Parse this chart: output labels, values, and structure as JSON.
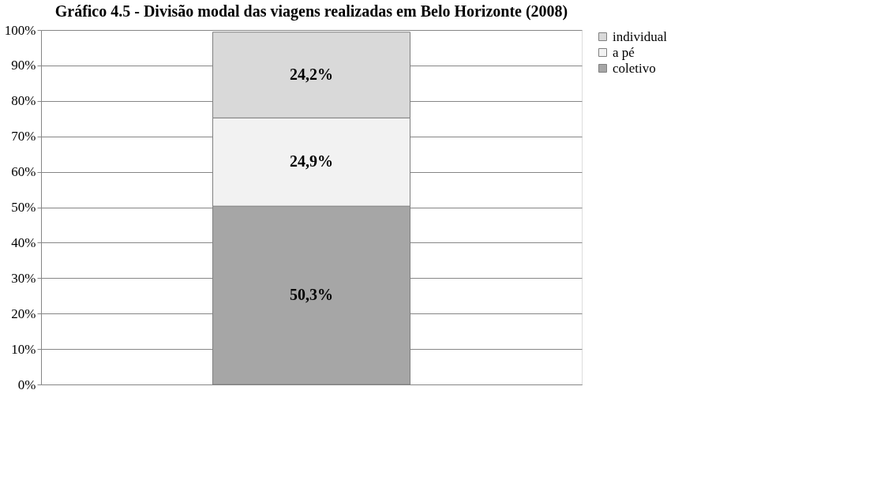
{
  "chart_data": {
    "type": "bar",
    "title": "Gráfico 4.5 - Divisão modal das viagens realizadas em Belo Horizonte (2008)",
    "categories": [
      null
    ],
    "stacked": true,
    "series": [
      {
        "name": "coletivo",
        "color": "#a6a6a6",
        "values": [
          50.3
        ],
        "value_labels": [
          "50,3%"
        ]
      },
      {
        "name": "a pé",
        "color": "#f2f2f2",
        "values": [
          24.9
        ],
        "value_labels": [
          "24,9%"
        ]
      },
      {
        "name": "individual",
        "color": "#d9d9d9",
        "values": [
          24.2
        ],
        "value_labels": [
          "24,2%"
        ]
      }
    ],
    "ylim": [
      0,
      100
    ],
    "yticks": [
      {
        "value": 0,
        "label": "0%"
      },
      {
        "value": 10,
        "label": "10%"
      },
      {
        "value": 20,
        "label": "20%"
      },
      {
        "value": 30,
        "label": "30%"
      },
      {
        "value": 40,
        "label": "40%"
      },
      {
        "value": 50,
        "label": "50%"
      },
      {
        "value": 60,
        "label": "60%"
      },
      {
        "value": 70,
        "label": "70%"
      },
      {
        "value": 80,
        "label": "80%"
      },
      {
        "value": 90,
        "label": "90%"
      },
      {
        "value": 100,
        "label": "100%"
      }
    ],
    "grid": "y",
    "legend": "right"
  }
}
